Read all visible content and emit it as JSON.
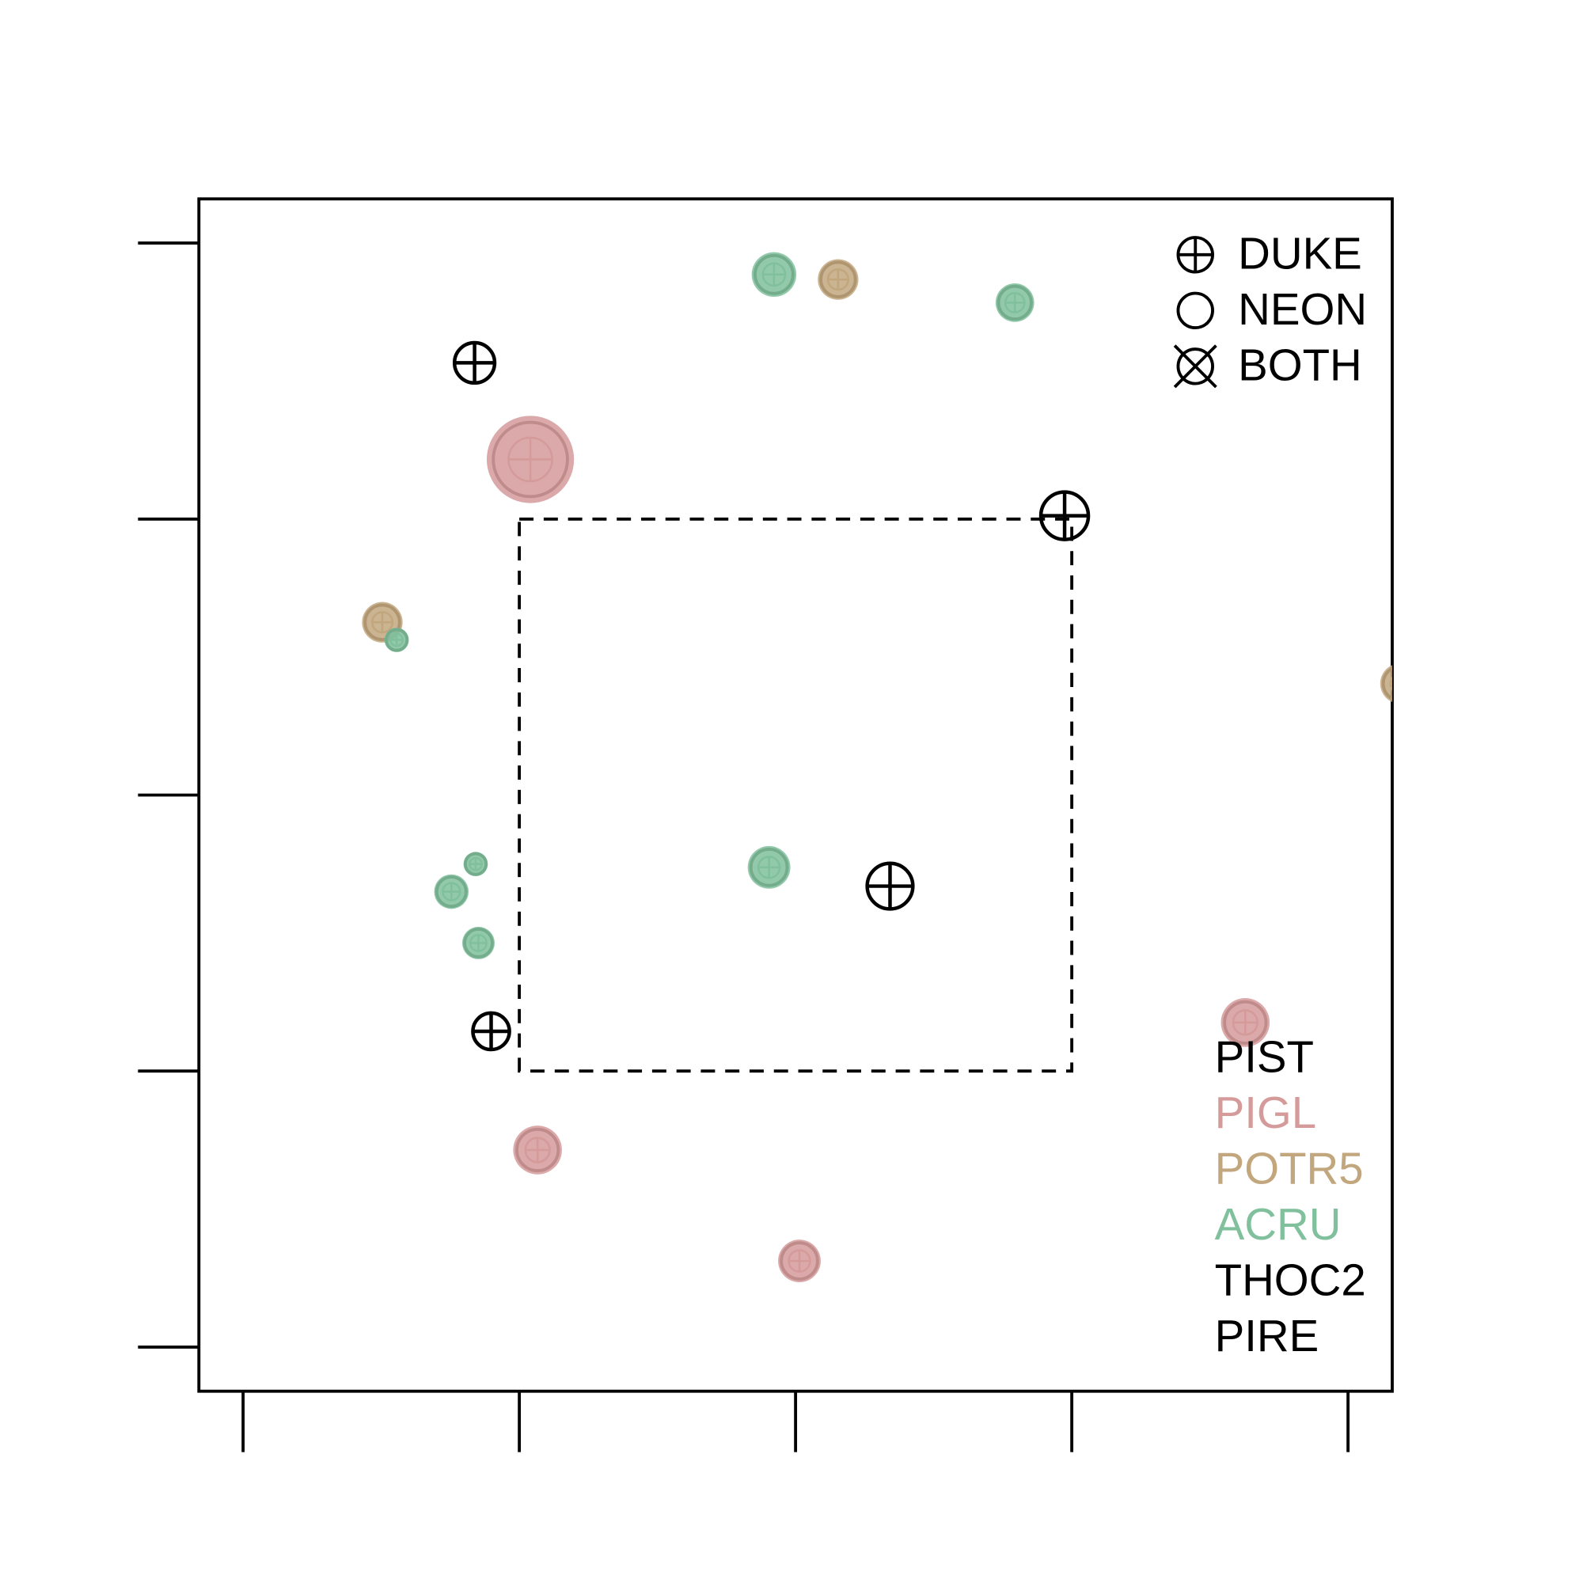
{
  "chart_data": {
    "type": "scatter",
    "xlim": [
      -0.8,
      20.8
    ],
    "ylim": [
      -0.8,
      20.8
    ],
    "xticks": [
      0,
      5,
      10,
      15,
      20
    ],
    "yticks": [
      0,
      5,
      10,
      15,
      20
    ],
    "inner_plot": {
      "x": [
        5,
        15
      ],
      "y": [
        5,
        15
      ]
    },
    "shapes": [
      "DUKE",
      "NEON",
      "BOTH"
    ],
    "series": [
      {
        "name": "PIST",
        "color": "#000000",
        "x": [
          4.19,
          14.87,
          11.71,
          4.49
        ],
        "y": [
          17.83,
          15.06,
          8.35,
          5.72
        ],
        "sizes": [
          22,
          26,
          25,
          20
        ]
      },
      {
        "name": "PIGL",
        "color": "#d59a9a",
        "x": [
          5.2,
          5.33,
          10.07,
          18.14
        ],
        "y": [
          16.08,
          3.57,
          1.56,
          5.88
        ],
        "sizes": [
          43,
          24,
          21,
          24
        ]
      },
      {
        "name": "POTR5",
        "color": "#c2a77e",
        "x": [
          10.77,
          2.52,
          20.95
        ],
        "y": [
          19.34,
          13.13,
          12.02
        ],
        "sizes": [
          20,
          20,
          20
        ]
      },
      {
        "name": "ACRU",
        "color": "#80c09c",
        "x": [
          9.61,
          13.97,
          2.78,
          4.21,
          3.77,
          4.26,
          9.52
        ],
        "y": [
          19.43,
          18.92,
          12.81,
          8.75,
          8.25,
          7.32,
          8.69
        ],
        "sizes": [
          22,
          19,
          12,
          12,
          17,
          16,
          21
        ]
      },
      {
        "name": "THOC2",
        "color": "#000000",
        "x": [],
        "y": [],
        "sizes": []
      },
      {
        "name": "PIRE",
        "color": "#000000",
        "x": [],
        "y": [],
        "sizes": []
      }
    ]
  }
}
